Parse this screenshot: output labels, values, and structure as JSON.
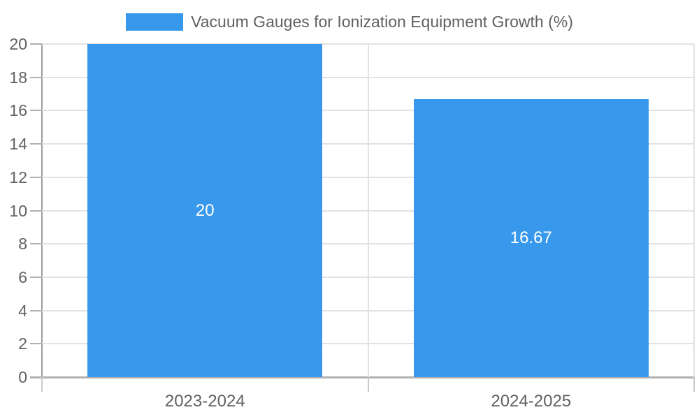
{
  "chart_data": {
    "type": "bar",
    "title": "Vacuum Gauges for Ionization Equipment Growth (%)",
    "categories": [
      "2023-2024",
      "2024-2025"
    ],
    "series": [
      {
        "name": "Vacuum Gauges for Ionization Equipment Growth (%)",
        "values": [
          20,
          16.67
        ],
        "value_labels": [
          "20",
          "16.67"
        ]
      }
    ],
    "xlabel": "",
    "ylabel": "",
    "ylim": [
      0,
      20
    ],
    "ytick_step": 2,
    "ytick_labels": [
      "0",
      "2",
      "4",
      "6",
      "8",
      "10",
      "12",
      "14",
      "16",
      "18",
      "20"
    ],
    "grid": true,
    "legend_position": "top-center",
    "colors": {
      "bar": "#3899ec",
      "grid": "#e2e2e2",
      "axis_y": "#9e9e9e",
      "axis_x": "#b0b0b0",
      "tick": "#b0b0b0",
      "label_text": "#616161",
      "value_label_text": "#ffffff",
      "background": "#ffffff"
    }
  }
}
